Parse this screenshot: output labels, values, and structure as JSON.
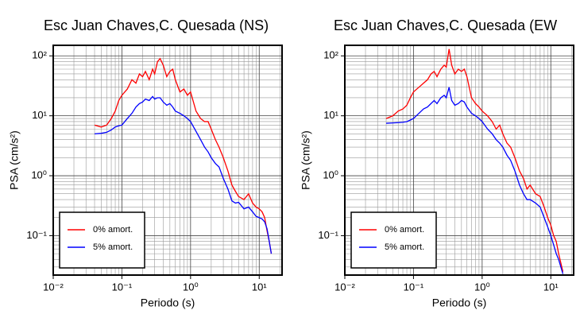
{
  "chart_data": [
    {
      "type": "line",
      "title": "Esc Juan Chaves,C. Quesada (NS)",
      "x_label": "Periodo (s)",
      "y_label": "PSA (cm/s²)",
      "log_x": true,
      "log_y": true,
      "grid": true,
      "minor_grid": true,
      "legend": "lower left",
      "xlim": [
        0.01,
        21.5
      ],
      "ylim": [
        0.022,
        150
      ],
      "xticks": [
        {
          "value": 0.01,
          "label": "10⁻²"
        },
        {
          "value": 0.1,
          "label": "10⁻¹"
        },
        {
          "value": 1,
          "label": "10⁰"
        },
        {
          "value": 10,
          "label": "10¹"
        }
      ],
      "yticks": [
        {
          "value": 0.1,
          "label": "10⁻¹"
        },
        {
          "value": 1,
          "label": "10⁰"
        },
        {
          "value": 10,
          "label": "10¹"
        },
        {
          "value": 100,
          "label": "10²"
        }
      ],
      "x": [
        0.04,
        0.05,
        0.06,
        0.07,
        0.08,
        0.09,
        0.1,
        0.12,
        0.14,
        0.16,
        0.18,
        0.2,
        0.22,
        0.25,
        0.28,
        0.3,
        0.33,
        0.36,
        0.4,
        0.45,
        0.5,
        0.55,
        0.6,
        0.7,
        0.8,
        0.9,
        1,
        1.2,
        1.4,
        1.6,
        1.8,
        2,
        2.3,
        2.6,
        3,
        3.5,
        4,
        4.5,
        5,
        6,
        7,
        8,
        9,
        10,
        11,
        12,
        13,
        14,
        15
      ],
      "series": [
        {
          "name": "0% amort.",
          "color": "#ff0000",
          "values": [
            7,
            6.5,
            7,
            9,
            12,
            18,
            22,
            28,
            40,
            35,
            50,
            45,
            55,
            40,
            60,
            50,
            80,
            90,
            70,
            45,
            55,
            60,
            40,
            25,
            28,
            22,
            25,
            12,
            9,
            8,
            8,
            6,
            4,
            3,
            2,
            1.2,
            0.7,
            0.55,
            0.45,
            0.4,
            0.5,
            0.35,
            0.3,
            0.28,
            0.25,
            0.2,
            0.12,
            0.08,
            0.05
          ]
        },
        {
          "name": "5% amort.",
          "color": "#0000ff",
          "values": [
            5,
            5.1,
            5.3,
            5.8,
            6.5,
            6.8,
            7,
            9,
            11,
            14,
            16,
            17,
            19,
            18,
            21,
            19,
            20,
            20,
            17,
            15,
            16,
            14,
            12,
            11,
            10,
            9,
            8,
            5.5,
            4,
            3,
            2.5,
            2,
            1.6,
            1.4,
            0.9,
            0.6,
            0.38,
            0.35,
            0.36,
            0.28,
            0.3,
            0.25,
            0.21,
            0.2,
            0.19,
            0.17,
            0.13,
            0.08,
            0.05
          ]
        }
      ]
    },
    {
      "type": "line",
      "title": "Esc Juan Chaves,C. Quesada (EW",
      "x_label": "Periodo (s)",
      "y_label": "PSA (cm/s²)",
      "log_x": true,
      "log_y": true,
      "grid": true,
      "minor_grid": true,
      "legend": "lower left",
      "xlim": [
        0.01,
        21.5
      ],
      "ylim": [
        0.022,
        150
      ],
      "xticks": [
        {
          "value": 0.01,
          "label": "10⁻²"
        },
        {
          "value": 0.1,
          "label": "10⁻¹"
        },
        {
          "value": 1,
          "label": "10⁰"
        },
        {
          "value": 10,
          "label": "10¹"
        }
      ],
      "yticks": [
        {
          "value": 0.1,
          "label": "10⁻¹"
        },
        {
          "value": 1,
          "label": "10⁰"
        },
        {
          "value": 10,
          "label": "10¹"
        },
        {
          "value": 100,
          "label": "10²"
        }
      ],
      "x": [
        0.04,
        0.05,
        0.06,
        0.07,
        0.08,
        0.09,
        0.1,
        0.12,
        0.14,
        0.16,
        0.18,
        0.2,
        0.22,
        0.25,
        0.28,
        0.3,
        0.33,
        0.36,
        0.4,
        0.45,
        0.5,
        0.55,
        0.6,
        0.7,
        0.8,
        0.9,
        1,
        1.2,
        1.4,
        1.6,
        1.8,
        2,
        2.3,
        2.6,
        3,
        3.5,
        4,
        4.5,
        5,
        6,
        7,
        8,
        9,
        10,
        11,
        12,
        13,
        14,
        15
      ],
      "series": [
        {
          "name": "0% amort.",
          "color": "#ff0000",
          "values": [
            9,
            10,
            12,
            13,
            15,
            20,
            25,
            30,
            35,
            40,
            50,
            55,
            45,
            60,
            70,
            65,
            130,
            70,
            50,
            60,
            55,
            60,
            45,
            20,
            16,
            14,
            12,
            10,
            8,
            6,
            7,
            5,
            3.5,
            3,
            2,
            1.2,
            0.9,
            0.6,
            0.7,
            0.5,
            0.45,
            0.3,
            0.2,
            0.15,
            0.1,
            0.08,
            0.05,
            0.035,
            0.025
          ]
        },
        {
          "name": "5% amort.",
          "color": "#0000ff",
          "values": [
            7.5,
            7.6,
            7.7,
            7.8,
            8,
            8.5,
            9,
            11,
            13,
            14,
            16,
            18,
            16,
            20,
            22,
            20,
            30,
            18,
            15,
            16,
            18,
            17,
            14,
            11,
            10,
            9,
            8,
            6,
            5,
            4,
            3.5,
            3,
            2.2,
            1.8,
            1.2,
            0.7,
            0.5,
            0.4,
            0.4,
            0.35,
            0.3,
            0.2,
            0.14,
            0.1,
            0.07,
            0.05,
            0.04,
            0.03,
            0.023
          ]
        }
      ]
    }
  ]
}
